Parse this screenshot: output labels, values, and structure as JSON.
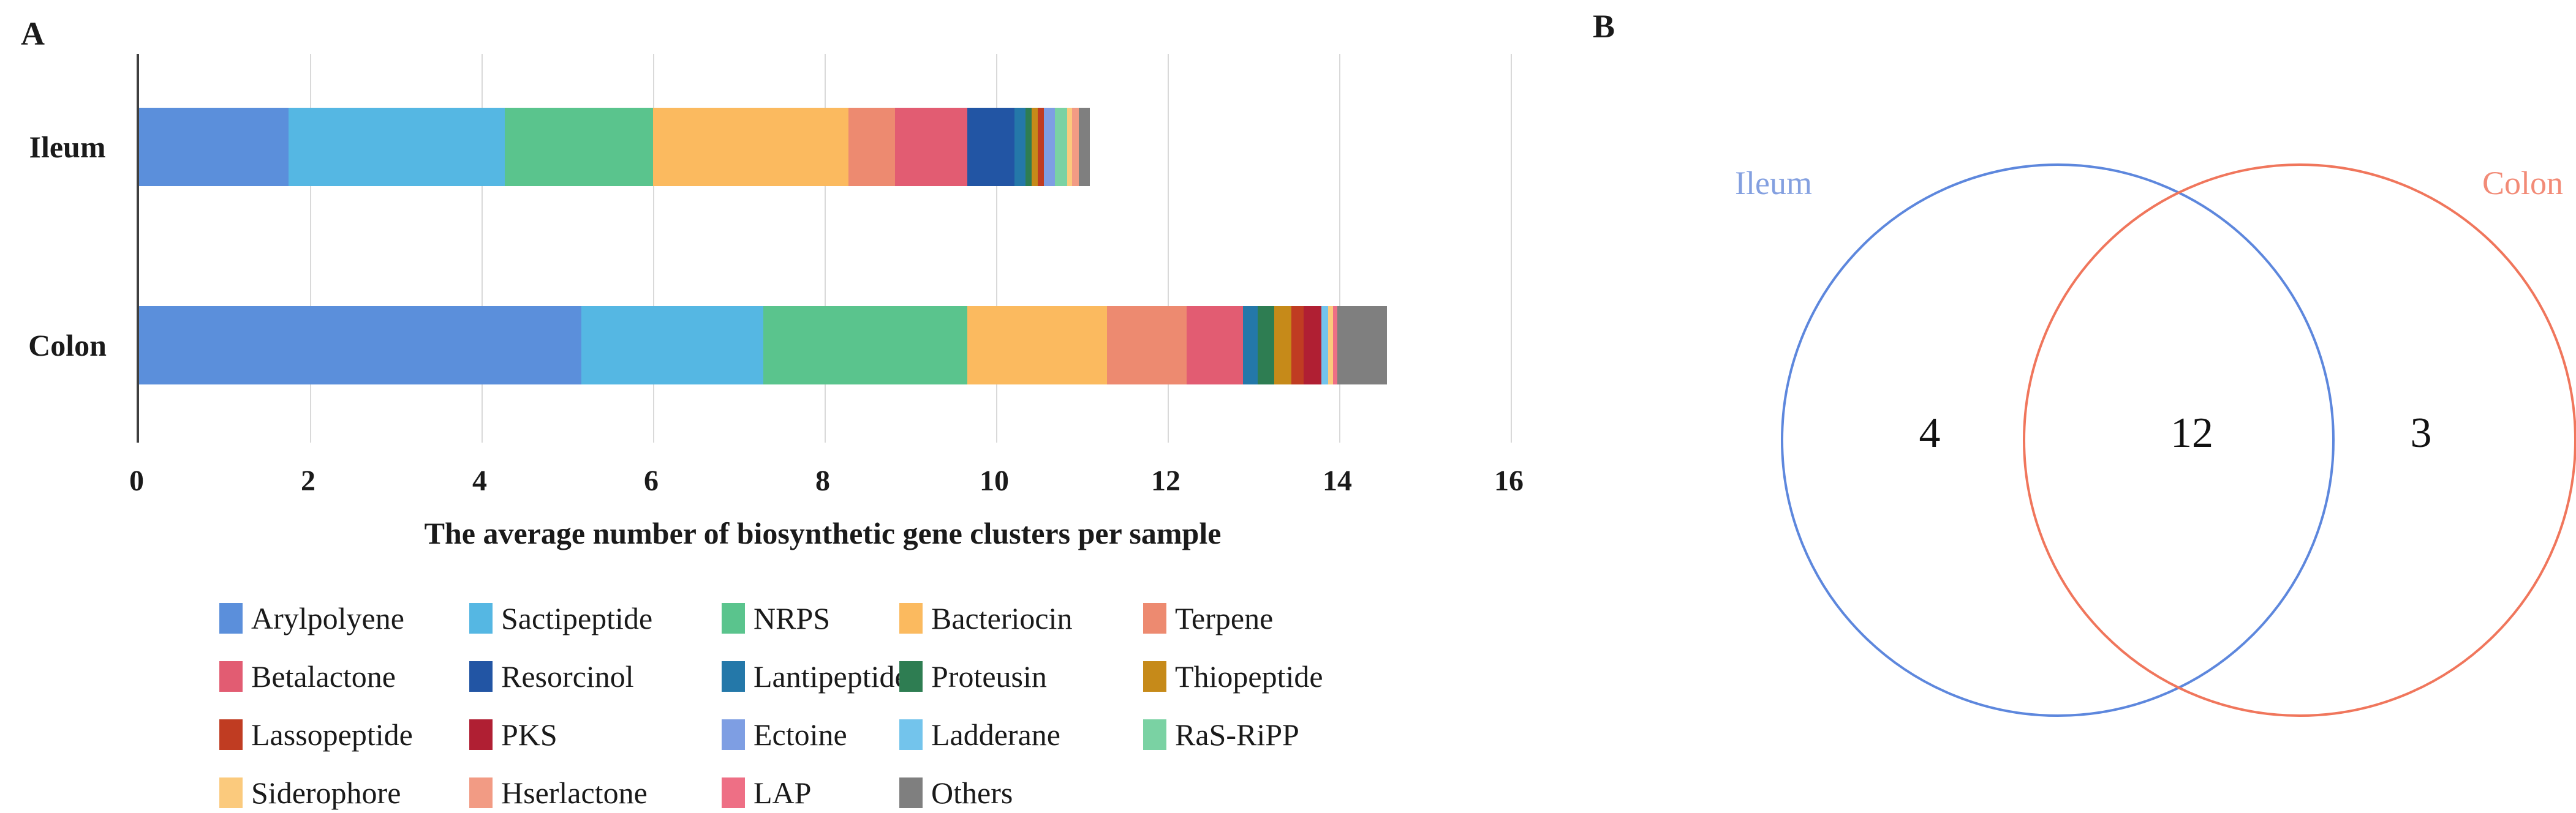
{
  "figure": {
    "panel_a_label": "A",
    "panel_b_label": "B"
  },
  "colors": {
    "axis": "#3f3f3f",
    "grid": "#d9d9d9",
    "venn_ileum_circle": "#5d87dd",
    "venn_colon_circle": "#f0765c",
    "venn_ileum_label": "#84a0e0",
    "venn_colon_label": "#f28b77"
  },
  "chart_data": [
    {
      "type": "bar",
      "orientation": "horizontal",
      "stacked": true,
      "title": "",
      "xlabel": "The average number of biosynthetic gene clusters per sample",
      "ylabel": "",
      "categories": [
        "Ileum",
        "Colon"
      ],
      "xlim": [
        0,
        16
      ],
      "xticks": [
        0,
        2,
        4,
        6,
        8,
        10,
        12,
        14,
        16
      ],
      "grid": "vertical",
      "legend_position": "bottom",
      "totals": [
        11.08,
        14.56
      ],
      "series": [
        {
          "name": "Arylpolyene",
          "color": "#5b8fdb",
          "values": [
            1.74,
            5.16
          ]
        },
        {
          "name": "Sactipeptide",
          "color": "#55b7e3",
          "values": [
            2.52,
            2.12
          ]
        },
        {
          "name": "NRPS",
          "color": "#5ac48d",
          "values": [
            1.73,
            2.38
          ]
        },
        {
          "name": "Bacteriocin",
          "color": "#fbba5f",
          "values": [
            2.28,
            1.63
          ]
        },
        {
          "name": "Terpene",
          "color": "#ed8a70",
          "values": [
            0.54,
            0.93
          ]
        },
        {
          "name": "Betalactone",
          "color": "#e25c72",
          "values": [
            0.84,
            0.66
          ]
        },
        {
          "name": "Resorcinol",
          "color": "#2255a4",
          "values": [
            0.55,
            0.0
          ]
        },
        {
          "name": "Lantipeptide",
          "color": "#2478a9",
          "values": [
            0.13,
            0.17
          ]
        },
        {
          "name": "Proteusin",
          "color": "#2e7d52",
          "values": [
            0.07,
            0.19
          ]
        },
        {
          "name": "Thiopeptide",
          "color": "#c68a19",
          "values": [
            0.07,
            0.2
          ]
        },
        {
          "name": "Lassopeptide",
          "color": "#c03c22",
          "values": [
            0.07,
            0.14
          ]
        },
        {
          "name": "PKS",
          "color": "#b01f33",
          "values": [
            0.0,
            0.21
          ]
        },
        {
          "name": "Ectoine",
          "color": "#7e9ee3",
          "values": [
            0.13,
            0.0
          ]
        },
        {
          "name": "Ladderane",
          "color": "#73c4ec",
          "values": [
            0.0,
            0.08
          ]
        },
        {
          "name": "RaS-RiPP",
          "color": "#7ad2a3",
          "values": [
            0.14,
            0.0
          ]
        },
        {
          "name": "Siderophore",
          "color": "#fbca7d",
          "values": [
            0.06,
            0.06
          ]
        },
        {
          "name": "Hserlactone",
          "color": "#f29b84",
          "values": [
            0.08,
            0.0
          ]
        },
        {
          "name": "LAP",
          "color": "#ee6f85",
          "values": [
            0.0,
            0.05
          ]
        },
        {
          "name": "Others",
          "color": "#7f7f7f",
          "values": [
            0.13,
            0.58
          ]
        }
      ]
    },
    {
      "type": "venn",
      "title": "",
      "sets": [
        {
          "name": "Ileum",
          "count_only": 4
        },
        {
          "name": "Colon",
          "count_only": 3
        }
      ],
      "regions": {
        "ileum_only": "4",
        "overlap": "12",
        "colon_only": "3"
      }
    }
  ]
}
